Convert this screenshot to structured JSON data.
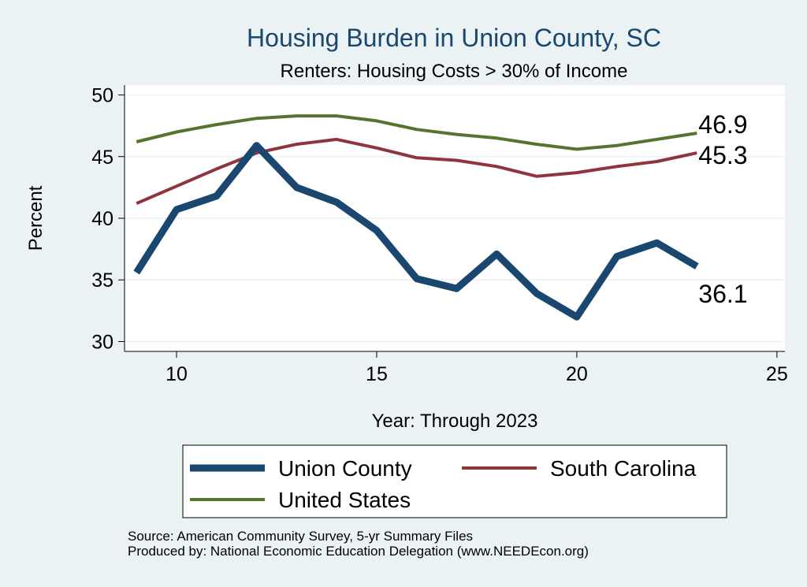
{
  "chart_data": {
    "type": "line",
    "title": "Housing Burden in Union County, SC",
    "subtitle": "Renters: Housing Costs > 30% of Income",
    "xlabel": "Year: Through 2023",
    "ylabel": "Percent",
    "xlim": [
      8.7,
      25.2
    ],
    "ylim": [
      29.2,
      50.8
    ],
    "xticks": [
      10,
      15,
      20,
      25
    ],
    "yticks": [
      30,
      35,
      40,
      45,
      50
    ],
    "grid": true,
    "legend_position": "bottom",
    "x": [
      9,
      10,
      11,
      12,
      13,
      14,
      15,
      16,
      17,
      18,
      19,
      20,
      21,
      22,
      23
    ],
    "series": [
      {
        "name": "Union County",
        "color": "#1a476f",
        "values": [
          35.6,
          40.7,
          41.8,
          45.9,
          42.5,
          41.3,
          39.0,
          35.1,
          34.3,
          37.1,
          33.9,
          32.0,
          36.9,
          38.0,
          36.1
        ],
        "end_label": "36.1"
      },
      {
        "name": "South Carolina",
        "color": "#90353b",
        "values": [
          41.2,
          42.6,
          44.0,
          45.3,
          46.0,
          46.4,
          45.7,
          44.9,
          44.7,
          44.2,
          43.4,
          43.7,
          44.2,
          44.6,
          45.3
        ],
        "end_label": "45.3"
      },
      {
        "name": "United States",
        "color": "#55752f",
        "values": [
          46.2,
          47.0,
          47.6,
          48.1,
          48.3,
          48.3,
          47.9,
          47.2,
          46.8,
          46.5,
          46.0,
          45.6,
          45.9,
          46.4,
          46.9
        ],
        "end_label": "46.9"
      }
    ]
  },
  "footer": {
    "source": "Source: American Community Survey, 5-yr Summary Files",
    "produced_by": "Produced by: National Economic Education Delegation (www.NEEDEcon.org)"
  }
}
